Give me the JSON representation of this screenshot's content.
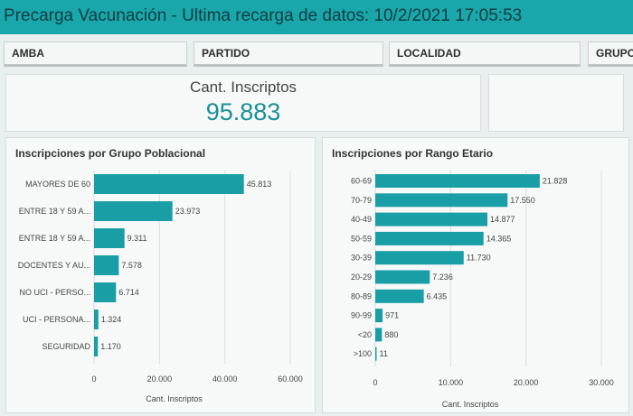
{
  "header": {
    "title": "Precarga Vacunación - Ultima recarga de datos: 10/2/2021 17:05:53"
  },
  "filters": {
    "amba": "AMBA",
    "partido": "PARTIDO",
    "localidad": "LOCALIDAD",
    "grupo": "GRUPO"
  },
  "kpi": {
    "label": "Cant. Inscriptos",
    "value": "95.883"
  },
  "charts": {
    "grupo": {
      "title": "Inscripciones por Grupo Poblacional"
    },
    "rango": {
      "title": "Inscripciones por Rango Etario"
    }
  },
  "colors": {
    "bar": "#1a9ea6",
    "header": "#19a7ac",
    "kpi": "#1a8f96"
  },
  "chart_data": [
    {
      "type": "bar",
      "orientation": "horizontal",
      "title": "Inscripciones por Grupo Poblacional",
      "categories": [
        "MAYORES DE 60",
        "ENTRE 18 Y 59 A...",
        "ENTRE 18 Y 59 A...",
        "DOCENTES Y AU...",
        "NO UCI - PERSO...",
        "UCI - PERSONA...",
        "SEGURIDAD"
      ],
      "values": [
        45813,
        23973,
        9311,
        7578,
        6714,
        1324,
        1170
      ],
      "value_labels": [
        "45.813",
        "23.973",
        "9.311",
        "7.578",
        "6.714",
        "1.324",
        "1.170"
      ],
      "xlabel": "Cant. Inscriptos",
      "xlim": [
        0,
        60000
      ],
      "xticks": [
        0,
        20000,
        40000,
        60000
      ],
      "xtick_labels": [
        "0",
        "20.000",
        "40.000",
        "60.000"
      ],
      "grid": true
    },
    {
      "type": "bar",
      "orientation": "horizontal",
      "title": "Inscripciones por Rango Etario",
      "categories": [
        "60-69",
        "70-79",
        "40-49",
        "50-59",
        "30-39",
        "20-29",
        "80-89",
        "90-99",
        "<20",
        ">100"
      ],
      "values": [
        21828,
        17550,
        14877,
        14365,
        11730,
        7236,
        6435,
        971,
        880,
        11
      ],
      "value_labels": [
        "21.828",
        "17.550",
        "14.877",
        "14.365",
        "11.730",
        "7.236",
        "6.435",
        "971",
        "880",
        "11"
      ],
      "xlabel": "Cant. Inscriptos",
      "xlim": [
        0,
        30000
      ],
      "xticks": [
        0,
        10000,
        20000,
        30000
      ],
      "xtick_labels": [
        "0",
        "10.000",
        "20.000",
        "30.000"
      ],
      "grid": true
    }
  ]
}
